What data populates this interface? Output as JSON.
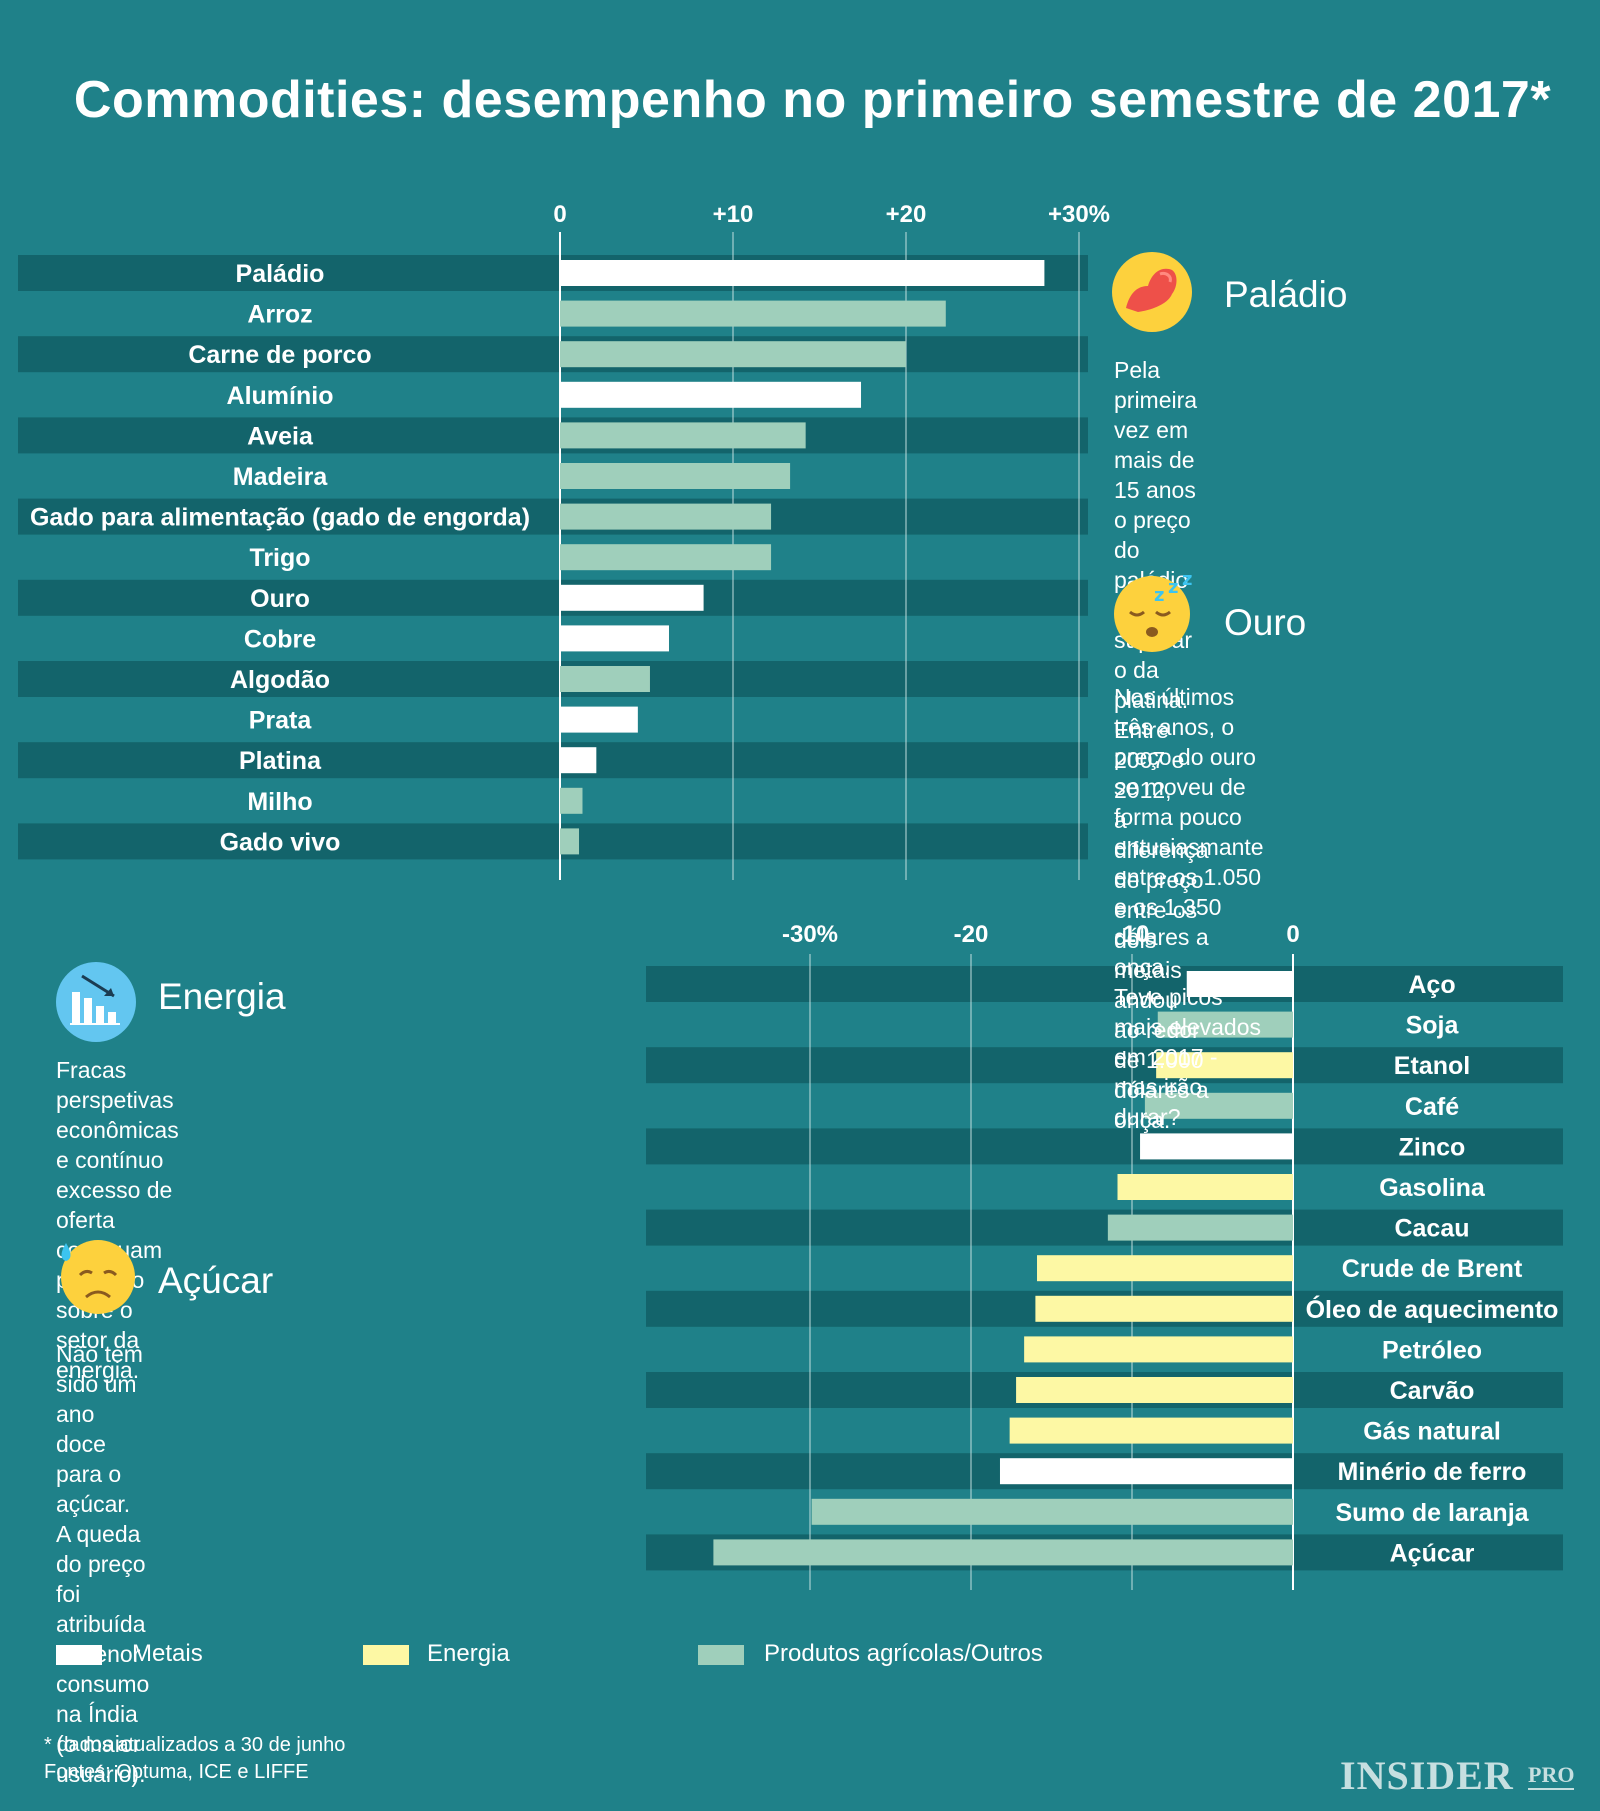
{
  "title": "Commodities: desempenho no primeiro semestre de 2017*",
  "colors": {
    "background": "#1f8189",
    "band_dark": "#13646b",
    "metais": "#ffffff",
    "energia": "#fdf8a4",
    "agricolas": "#9fcfbb",
    "gridline": "#c8e3e4"
  },
  "chart_data": [
    {
      "type": "bar",
      "orientation": "horizontal",
      "title": "",
      "xlim": [
        0,
        31
      ],
      "ticks": [
        0,
        10,
        20,
        30
      ],
      "tick_labels": [
        "0",
        "+10",
        "+20",
        "+30%"
      ],
      "categories": [
        "Paládio",
        "Arroz",
        "Carne de porco",
        "Alumínio",
        "Aveia",
        "Madeira",
        "Gado para alimentação (gado de engorda)",
        "Trigo",
        "Ouro",
        "Cobre",
        "Algodão",
        "Prata",
        "Platina",
        "Milho",
        "Gado vivo"
      ],
      "values": [
        28,
        22.3,
        20,
        17.4,
        14.2,
        13.3,
        12.2,
        12.2,
        8.3,
        6.3,
        5.2,
        4.5,
        2.1,
        1.3,
        1.1
      ],
      "groups": [
        "Metais",
        "Agrícolas",
        "Agrícolas",
        "Metais",
        "Agrícolas",
        "Agrícolas",
        "Agrícolas",
        "Agrícolas",
        "Metais",
        "Metais",
        "Agrícolas",
        "Metais",
        "Metais",
        "Agrícolas",
        "Agrícolas"
      ]
    },
    {
      "type": "bar",
      "orientation": "horizontal",
      "title": "",
      "xlim": [
        -40,
        0
      ],
      "ticks": [
        -30,
        -20,
        -10,
        0
      ],
      "tick_labels": [
        "-30%",
        "-20",
        "-10",
        "0"
      ],
      "categories": [
        "Aço",
        "Soja",
        "Etanol",
        "Café",
        "Zinco",
        "Gasolina",
        "Cacau",
        "Crude de Brent",
        "Óleo de aquecimento",
        "Petróleo",
        "Carvão",
        "Gás natural",
        "Minério de ferro",
        "Sumo de laranja",
        "Açúcar"
      ],
      "values": [
        -6.6,
        -8.4,
        -8.5,
        -9.2,
        -9.5,
        -10.9,
        -11.5,
        -15.9,
        -16,
        -16.7,
        -17.2,
        -17.6,
        -18.2,
        -29.9,
        -36
      ],
      "groups": [
        "Metais",
        "Agrícolas",
        "Energia",
        "Agrícolas",
        "Metais",
        "Energia",
        "Agrícolas",
        "Energia",
        "Energia",
        "Energia",
        "Energia",
        "Energia",
        "Metais",
        "Agrícolas",
        "Agrícolas"
      ]
    }
  ],
  "panels": {
    "paladio": {
      "title": "Paládio",
      "icon": "flexed-biceps-icon",
      "text": "Pela primeira vez em mais de 15 anos\no preço do paládio poderá superar\no da platina. Entre 2007 e 2012,\na diferença de preço entre os\ndois metais andou ao redor\nde 1.000 dólares a onça."
    },
    "ouro": {
      "title": "Ouro",
      "icon": "sleeping-face-icon",
      "text": "Nos últimos três anos, o preço do ouro\nse moveu de forma pouco entusiasmante\nentre os 1.050 e os 1.350 dólares a onça.\nTeve picos mais elevados em 2017 -\nmas irão durar?"
    },
    "energia": {
      "title": "Energia",
      "icon": "declining-chart-icon",
      "text": "Fracas perspetivas econômicas e contínuo\nexcesso de oferta continuam pesando\nsobre o setor da energia."
    },
    "acucar": {
      "title": "Açúcar",
      "icon": "sad-sweat-face-icon",
      "text": "Não tem sido um ano doce para o açúcar.\nA queda do preço foi atribuída a menor\nconsumo na Índia (o maior usuário)."
    }
  },
  "legend": [
    {
      "label": "Metais",
      "color": "#ffffff"
    },
    {
      "label": "Energia",
      "color": "#fdf8a4"
    },
    {
      "label": "Produtos agrícolas/Outros",
      "color": "#9fcfbb"
    }
  ],
  "footnote": "* dados atualizados a 30 de junho\n   Fontes: Optuma, ICE e LIFFE",
  "brand": {
    "name": "INSIDER",
    "sub": "PRO"
  }
}
